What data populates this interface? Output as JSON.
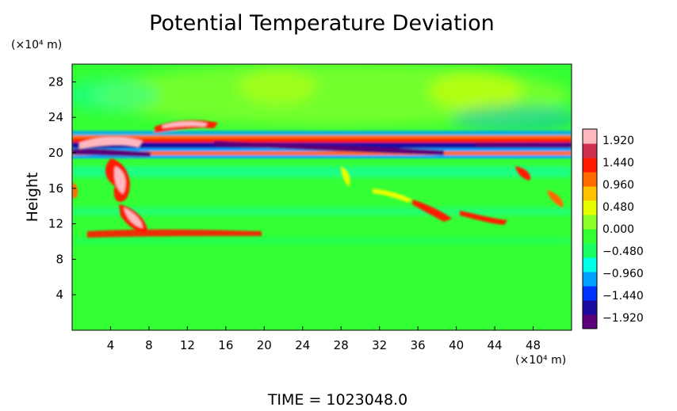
{
  "chart_data": {
    "type": "heatmap",
    "title": "Potential Temperature Deviation",
    "ylabel": "Height",
    "x_units_label": "(×10⁴ m)",
    "y_units_label": "(×10⁴ m)",
    "xlim": [
      0,
      52
    ],
    "ylim": [
      0,
      30
    ],
    "x_ticks": [
      4,
      8,
      12,
      16,
      20,
      24,
      28,
      32,
      36,
      40,
      44,
      48
    ],
    "y_ticks": [
      4,
      8,
      12,
      16,
      20,
      24,
      28
    ],
    "colorbar": {
      "vmin": -2.16,
      "vmax": 2.16,
      "labels": [
        "1.920",
        "1.440",
        "0.960",
        "0.480",
        "0.000",
        "−0.480",
        "−0.960",
        "−1.440",
        "−1.920"
      ],
      "colors": [
        "#5a007a",
        "#1a0aa0",
        "#0032ff",
        "#00a0ff",
        "#00ffe6",
        "#19ff64",
        "#34ff34",
        "#8cff2a",
        "#e6ff00",
        "#ffc000",
        "#ff6a00",
        "#ff1a00",
        "#d03050",
        "#ffb8c0"
      ]
    },
    "grid": false,
    "legend": "right (colorbar)",
    "time_label": "TIME  =  1023048.0"
  }
}
